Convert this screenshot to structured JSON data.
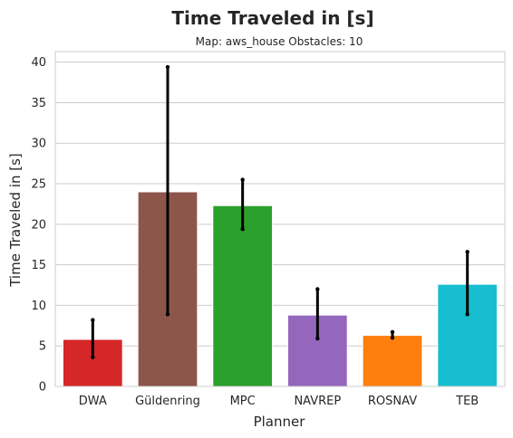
{
  "chart_data": {
    "type": "bar",
    "title": "Time Traveled in [s]",
    "subtitle": "Map: aws_house Obstacles: 10",
    "xlabel": "Planner",
    "ylabel": "Time Traveled in [s]",
    "ylim": [
      0,
      41.3
    ],
    "yticks": [
      "0",
      "5",
      "10",
      "15",
      "20",
      "25",
      "30",
      "35",
      "40"
    ],
    "grid": true,
    "categories": [
      "DWA",
      "Güldenring",
      "MPC",
      "NAVREP",
      "ROSNAV",
      "TEB"
    ],
    "values": [
      5.8,
      24.0,
      22.3,
      8.8,
      6.3,
      12.6
    ],
    "error_low": [
      3.6,
      8.9,
      19.4,
      5.9,
      6.0,
      8.9
    ],
    "error_high": [
      8.2,
      39.4,
      25.5,
      12.0,
      6.7,
      16.6
    ],
    "colors": [
      "#d62728",
      "#8c564b",
      "#2ca02c",
      "#9467bd",
      "#ff7f0e",
      "#17becf"
    ],
    "error_color": "#000000",
    "grid_color": "#cccccc",
    "spine_color": "#cccccc"
  }
}
